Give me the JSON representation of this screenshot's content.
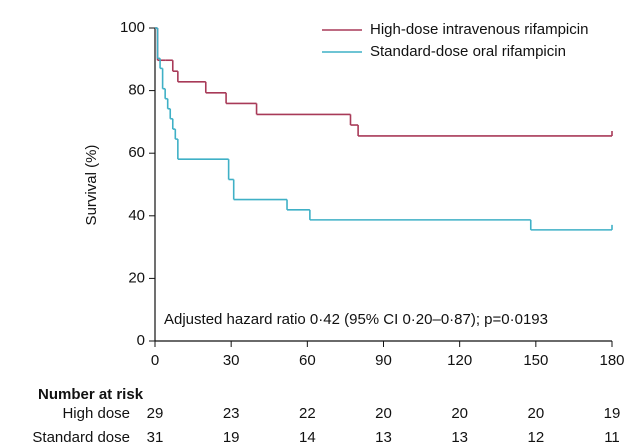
{
  "chart_data": {
    "type": "kaplan-meier",
    "ylabel": "Survival (%)",
    "annotation": "Adjusted hazard ratio 0·42 (95% CI 0·20–0·87); p=0·0193",
    "xlim": [
      0,
      180
    ],
    "ylim": [
      0,
      100
    ],
    "xticks": [
      0,
      30,
      60,
      90,
      120,
      150,
      180
    ],
    "yticks": [
      0,
      20,
      40,
      60,
      80,
      100
    ],
    "legend": "top-right",
    "series": [
      {
        "name": "High-dose intravenous rifampicin",
        "color": "#a83a58",
        "x": [
          0,
          1,
          4,
          7,
          9,
          20,
          28,
          40,
          77,
          80
        ],
        "values": [
          100,
          89.7,
          89.7,
          86.2,
          82.8,
          79.3,
          75.9,
          72.4,
          69.0,
          65.5
        ]
      },
      {
        "name": "Standard-dose oral rifampicin",
        "color": "#3fb0c6",
        "x": [
          0,
          1,
          2,
          3,
          4,
          5,
          6,
          7,
          8,
          9,
          29,
          31,
          52,
          61,
          148
        ],
        "values": [
          100,
          90.3,
          87.1,
          80.6,
          77.4,
          74.2,
          71.0,
          67.7,
          64.5,
          58.1,
          51.6,
          45.2,
          41.9,
          38.7,
          35.5
        ]
      }
    ],
    "risk_table": {
      "title": "Number at risk",
      "rows": [
        {
          "label": "High dose",
          "values": [
            29,
            23,
            22,
            20,
            20,
            20,
            19
          ]
        },
        {
          "label": "Standard dose",
          "values": [
            31,
            19,
            14,
            13,
            13,
            12,
            11
          ]
        }
      ]
    }
  }
}
